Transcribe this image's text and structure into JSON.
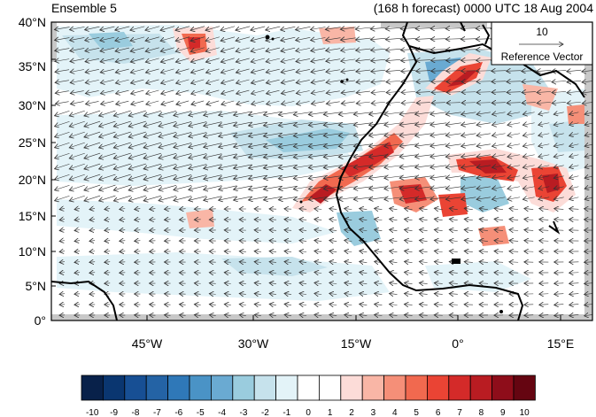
{
  "header": {
    "left_title": "Ensemble 5",
    "right_title": "(168 h forecast) 0000 UTC 18 Aug 2004"
  },
  "map": {
    "lat_labels": [
      "40°N",
      "35°N",
      "30°N",
      "25°N",
      "20°N",
      "15°N",
      "10°N",
      "5°N",
      "0°"
    ],
    "lon_labels": [
      "45°W",
      "30°W",
      "15°W",
      "0°",
      "15°E"
    ],
    "reference_vector": {
      "value": "10",
      "label": "Reference Vector"
    }
  },
  "colorbar": {
    "labels": [
      "-10",
      "-9",
      "-8",
      "-7",
      "-6",
      "-5",
      "-4",
      "-3",
      "-2",
      "-1",
      "0",
      "1",
      "2",
      "3",
      "4",
      "5",
      "6",
      "7",
      "8",
      "9",
      "10"
    ],
    "colors": [
      "#08214a",
      "#0a3670",
      "#174f94",
      "#2463a5",
      "#2f78b8",
      "#4a93c6",
      "#6aaad2",
      "#9accde",
      "#c6e2ec",
      "#e3f3f8",
      "#ffffff",
      "#ffffff",
      "#fcdcd8",
      "#f9b6a6",
      "#f58f78",
      "#f1694f",
      "#ea4434",
      "#d42a29",
      "#b91c22",
      "#8e0d1a",
      "#650511"
    ]
  },
  "colors": {
    "land_gray": "#c8c8c8",
    "coast": "#000000",
    "arrow": "#333333"
  }
}
